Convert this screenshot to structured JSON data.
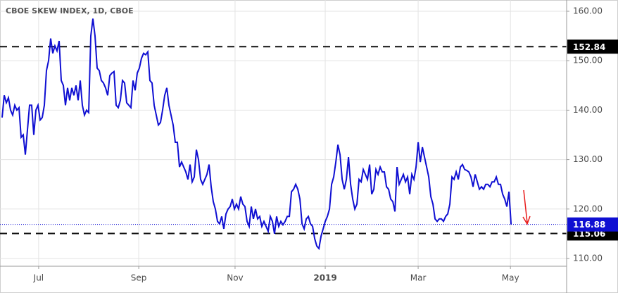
{
  "chart_data": {
    "type": "line",
    "title": "CBOE SKEW INDEX, 1D, CBOE",
    "color": "#0f0fd2",
    "values": [
      138.5,
      143,
      141.5,
      142.5,
      140,
      139,
      141,
      140,
      140.5,
      134.5,
      135,
      131,
      136,
      141,
      141,
      135,
      140,
      141,
      138,
      138.5,
      141,
      148,
      150,
      154.5,
      151.5,
      153,
      152,
      154,
      146,
      145,
      141,
      144.5,
      142,
      144.5,
      143,
      145,
      142,
      146,
      141,
      139,
      140,
      139.5,
      155,
      158.5,
      155,
      148.5,
      148,
      146,
      145.5,
      144.5,
      143,
      147,
      147.5,
      147.8,
      141,
      140.5,
      142,
      146,
      145.5,
      141.5,
      141,
      140.5,
      146,
      144,
      147.5,
      148.5,
      150.5,
      151.5,
      151.2,
      151.8,
      146,
      145.5,
      141,
      139,
      137,
      137.5,
      140,
      143,
      144.5,
      141,
      139,
      137,
      133.5,
      133.5,
      128.5,
      129.5,
      128.5,
      127.5,
      126,
      129,
      125.5,
      126.5,
      132,
      130,
      126,
      125,
      126,
      127,
      129,
      124.5,
      121.5,
      120,
      117.5,
      117,
      118.5,
      116,
      119,
      120,
      120.5,
      122,
      120,
      121,
      120,
      122.5,
      121,
      120.5,
      117.5,
      116.5,
      120.5,
      118,
      120,
      118,
      118.5,
      116.5,
      117.5,
      116.5,
      115.5,
      118.5,
      117.5,
      115,
      118.5,
      116.5,
      117.5,
      116.8,
      117.5,
      118.5,
      118.5,
      123.5,
      124,
      125,
      124,
      122,
      117,
      116,
      118,
      118.5,
      117,
      116.5,
      114,
      112.5,
      112,
      114.5,
      116,
      117.5,
      118.5,
      120,
      125,
      126.5,
      129.5,
      133,
      131,
      126,
      124,
      126,
      130.5,
      125,
      122,
      120,
      121,
      126,
      125.5,
      128,
      127,
      126,
      129,
      123,
      124,
      128,
      127,
      128.5,
      127.5,
      127.5,
      124.5,
      124,
      122,
      121.5,
      119.5,
      128.5,
      125,
      126,
      127,
      125.5,
      126.5,
      123,
      127,
      126,
      128.5,
      133.5,
      129.5,
      132.5,
      130.5,
      128.5,
      126.5,
      122.5,
      121,
      118,
      117.5,
      118,
      118,
      117.5,
      118.5,
      119,
      121,
      126.5,
      126,
      127.5,
      126,
      128.5,
      129,
      128,
      127.8,
      127.5,
      126.5,
      124.5,
      127,
      125.5,
      124,
      124.5,
      124,
      125,
      125,
      124.5,
      125.5,
      125.5,
      126.5,
      125,
      125,
      123,
      122,
      120.5,
      123.5,
      116.88
    ],
    "xlim": [
      -1,
      267.3
    ],
    "xticks": [
      {
        "value": 17.3,
        "label": "Jul"
      },
      {
        "value": 64.7,
        "label": "Sep"
      },
      {
        "value": 110.3,
        "label": "Nov"
      },
      {
        "value": 153,
        "label": "2019"
      },
      {
        "value": 197,
        "label": "Mar"
      },
      {
        "value": 240.7,
        "label": "May"
      }
    ],
    "ylim": [
      108.43,
      162.28
    ],
    "yticks": [
      {
        "value": 110,
        "label": "110.00"
      },
      {
        "value": 120,
        "label": "120.00"
      },
      {
        "value": 130,
        "label": "130.00"
      },
      {
        "value": 140,
        "label": "140.00"
      },
      {
        "value": 150,
        "label": "150.00"
      },
      {
        "value": 160,
        "label": "160.00"
      }
    ],
    "levels": [
      152.84,
      115.06
    ],
    "grid": true
  }
}
